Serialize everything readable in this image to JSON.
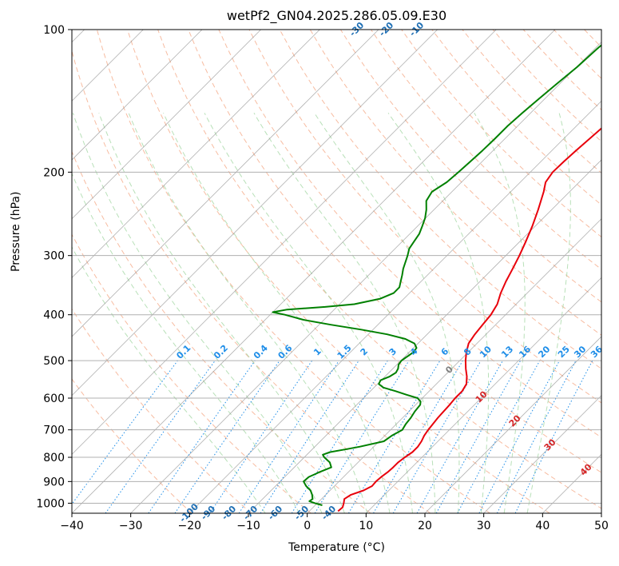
{
  "chart_data": {
    "type": "line",
    "title": "wetPf2_GN04.2025.286.05.09.E30",
    "xlabel": "Temperature (°C)",
    "ylabel": "Pressure (hPa)",
    "xlim": [
      -40,
      50
    ],
    "ylim_pressure": [
      1050,
      100
    ],
    "y_scale": "log",
    "grid": true,
    "x_ticks": [
      -40,
      -30,
      -20,
      -10,
      0,
      10,
      20,
      30,
      40,
      50
    ],
    "y_ticks": [
      100,
      200,
      300,
      400,
      500,
      600,
      700,
      800,
      900,
      1000
    ],
    "colors": {
      "temperature": "#e8000b",
      "dewpoint": "#008000",
      "dry_adiabat": "#f4a582",
      "moist_adiabat": "#a6d8a6",
      "isotherm": "#888888",
      "mixing_ratio": "#1f8ee8",
      "adiabat_label": "#1f6fb4",
      "isotherm_label": "#d62728"
    },
    "series": [
      {
        "key": "temperature",
        "points": [
          [
            1040,
            4.9
          ],
          [
            1020,
            5.0
          ],
          [
            1000,
            4.5
          ],
          [
            980,
            3.9
          ],
          [
            960,
            4.3
          ],
          [
            940,
            5.7
          ],
          [
            920,
            6.4
          ],
          [
            900,
            6.3
          ],
          [
            880,
            6.4
          ],
          [
            860,
            6.7
          ],
          [
            840,
            6.8
          ],
          [
            820,
            6.8
          ],
          [
            800,
            7.1
          ],
          [
            780,
            7.5
          ],
          [
            760,
            7.5
          ],
          [
            740,
            7.2
          ],
          [
            720,
            6.7
          ],
          [
            700,
            6.4
          ],
          [
            680,
            6.2
          ],
          [
            660,
            6.0
          ],
          [
            640,
            5.9
          ],
          [
            620,
            5.8
          ],
          [
            600,
            5.6
          ],
          [
            580,
            5.6
          ],
          [
            560,
            5.1
          ],
          [
            540,
            3.9
          ],
          [
            520,
            2.4
          ],
          [
            500,
            1.0
          ],
          [
            480,
            -0.3
          ],
          [
            460,
            -1.4
          ],
          [
            440,
            -1.9
          ],
          [
            420,
            -2.2
          ],
          [
            400,
            -2.5
          ],
          [
            380,
            -3.2
          ],
          [
            360,
            -4.5
          ],
          [
            340,
            -5.6
          ],
          [
            320,
            -6.6
          ],
          [
            300,
            -7.7
          ],
          [
            280,
            -9.0
          ],
          [
            260,
            -10.5
          ],
          [
            240,
            -12.3
          ],
          [
            220,
            -14.4
          ],
          [
            210,
            -15.7
          ],
          [
            200,
            -16.2
          ],
          [
            190,
            -16.1
          ],
          [
            180,
            -15.9
          ],
          [
            170,
            -15.6
          ],
          [
            160,
            -15.3
          ],
          [
            150,
            -15.3
          ],
          [
            140,
            -15.3
          ],
          [
            130,
            -15.3
          ],
          [
            120,
            -15.3
          ],
          [
            110,
            -15.4
          ],
          [
            100,
            -15.6
          ]
        ]
      },
      {
        "key": "dewpoint",
        "points": [
          [
            1010,
            1.2
          ],
          [
            1000,
            -0.4
          ],
          [
            990,
            -1.7
          ],
          [
            980,
            -1.5
          ],
          [
            960,
            -2.3
          ],
          [
            940,
            -3.3
          ],
          [
            920,
            -4.8
          ],
          [
            900,
            -6.0
          ],
          [
            880,
            -5.9
          ],
          [
            860,
            -4.9
          ],
          [
            840,
            -3.7
          ],
          [
            820,
            -4.8
          ],
          [
            800,
            -6.6
          ],
          [
            790,
            -7.3
          ],
          [
            780,
            -6.5
          ],
          [
            770,
            -4.4
          ],
          [
            760,
            -2.4
          ],
          [
            740,
            0.8
          ],
          [
            720,
            1.2
          ],
          [
            700,
            2.0
          ],
          [
            680,
            1.6
          ],
          [
            660,
            1.4
          ],
          [
            640,
            1.0
          ],
          [
            620,
            0.8
          ],
          [
            610,
            0.3
          ],
          [
            600,
            -0.8
          ],
          [
            590,
            -3.3
          ],
          [
            580,
            -5.7
          ],
          [
            570,
            -8.4
          ],
          [
            560,
            -9.8
          ],
          [
            550,
            -10.1
          ],
          [
            540,
            -9.2
          ],
          [
            530,
            -8.8
          ],
          [
            520,
            -9.1
          ],
          [
            510,
            -9.7
          ],
          [
            500,
            -9.9
          ],
          [
            490,
            -9.6
          ],
          [
            480,
            -9.3
          ],
          [
            470,
            -9.5
          ],
          [
            460,
            -10.6
          ],
          [
            450,
            -12.9
          ],
          [
            440,
            -16.8
          ],
          [
            430,
            -22.0
          ],
          [
            420,
            -28.0
          ],
          [
            410,
            -33.5
          ],
          [
            400,
            -37.5
          ],
          [
            395,
            -40.0
          ],
          [
            390,
            -38.0
          ],
          [
            385,
            -32.0
          ],
          [
            380,
            -27.5
          ],
          [
            370,
            -24.0
          ],
          [
            360,
            -22.7
          ],
          [
            350,
            -22.7
          ],
          [
            340,
            -23.5
          ],
          [
            330,
            -24.3
          ],
          [
            320,
            -25.2
          ],
          [
            300,
            -26.7
          ],
          [
            290,
            -27.6
          ],
          [
            280,
            -28.0
          ],
          [
            270,
            -28.4
          ],
          [
            260,
            -29.2
          ],
          [
            250,
            -30.1
          ],
          [
            240,
            -31.3
          ],
          [
            230,
            -32.8
          ],
          [
            220,
            -33.4
          ],
          [
            210,
            -32.5
          ],
          [
            200,
            -32.2
          ],
          [
            190,
            -32.0
          ],
          [
            180,
            -31.8
          ],
          [
            170,
            -31.7
          ],
          [
            160,
            -31.7
          ],
          [
            150,
            -31.4
          ],
          [
            140,
            -31.0
          ],
          [
            130,
            -30.5
          ],
          [
            120,
            -29.9
          ],
          [
            110,
            -29.6
          ],
          [
            100,
            -29.0
          ]
        ]
      }
    ],
    "dry_adiabat_labels": [
      "-100",
      "-90",
      "-80",
      "-70",
      "-60",
      "-50",
      "-40",
      "-30",
      "-20",
      "-10"
    ],
    "mixing_ratio_labels": [
      "0.1",
      "0.2",
      "0.4",
      "0.6",
      "1",
      "1.5",
      "2",
      "3",
      "4",
      "6",
      "8",
      "10",
      "13",
      "16",
      "20",
      "25",
      "30",
      "36"
    ],
    "isotherm_labels": [
      "0",
      "10",
      "20",
      "30",
      "40"
    ]
  }
}
